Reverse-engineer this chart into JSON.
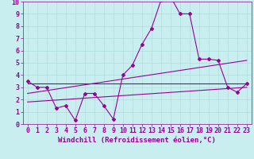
{
  "xlabel": "Windchill (Refroidissement éolien,°C)",
  "bg_color": "#c8eef0",
  "line_color": "#990099",
  "grid_color": "#b0dde0",
  "xlim": [
    -0.5,
    23.5
  ],
  "ylim": [
    0,
    10
  ],
  "xticks": [
    0,
    1,
    2,
    3,
    4,
    5,
    6,
    7,
    8,
    9,
    10,
    11,
    12,
    13,
    14,
    15,
    16,
    17,
    18,
    19,
    20,
    21,
    22,
    23
  ],
  "yticks": [
    0,
    1,
    2,
    3,
    4,
    5,
    6,
    7,
    8,
    9,
    10
  ],
  "line1_x": [
    0,
    1,
    2,
    3,
    4,
    5,
    6,
    7,
    8,
    9,
    10,
    11,
    12,
    13,
    14,
    15,
    16,
    17,
    18,
    19,
    20,
    21,
    22,
    23
  ],
  "line1_y": [
    3.5,
    3.0,
    3.0,
    1.3,
    1.5,
    0.3,
    2.5,
    2.5,
    1.5,
    0.4,
    4.0,
    4.8,
    6.5,
    7.8,
    10.1,
    10.4,
    9.0,
    9.0,
    5.3,
    5.3,
    5.2,
    3.0,
    2.6,
    3.3
  ],
  "line2_x": [
    0,
    23
  ],
  "line2_y": [
    3.3,
    3.3
  ],
  "line3_x": [
    0,
    23
  ],
  "line3_y": [
    2.5,
    5.2
  ],
  "line4_x": [
    0,
    23
  ],
  "line4_y": [
    1.8,
    3.0
  ],
  "font_size_label": 6.5,
  "font_size_tick": 6.0,
  "marker": "D",
  "marker_size": 2.0,
  "linewidth": 0.8
}
